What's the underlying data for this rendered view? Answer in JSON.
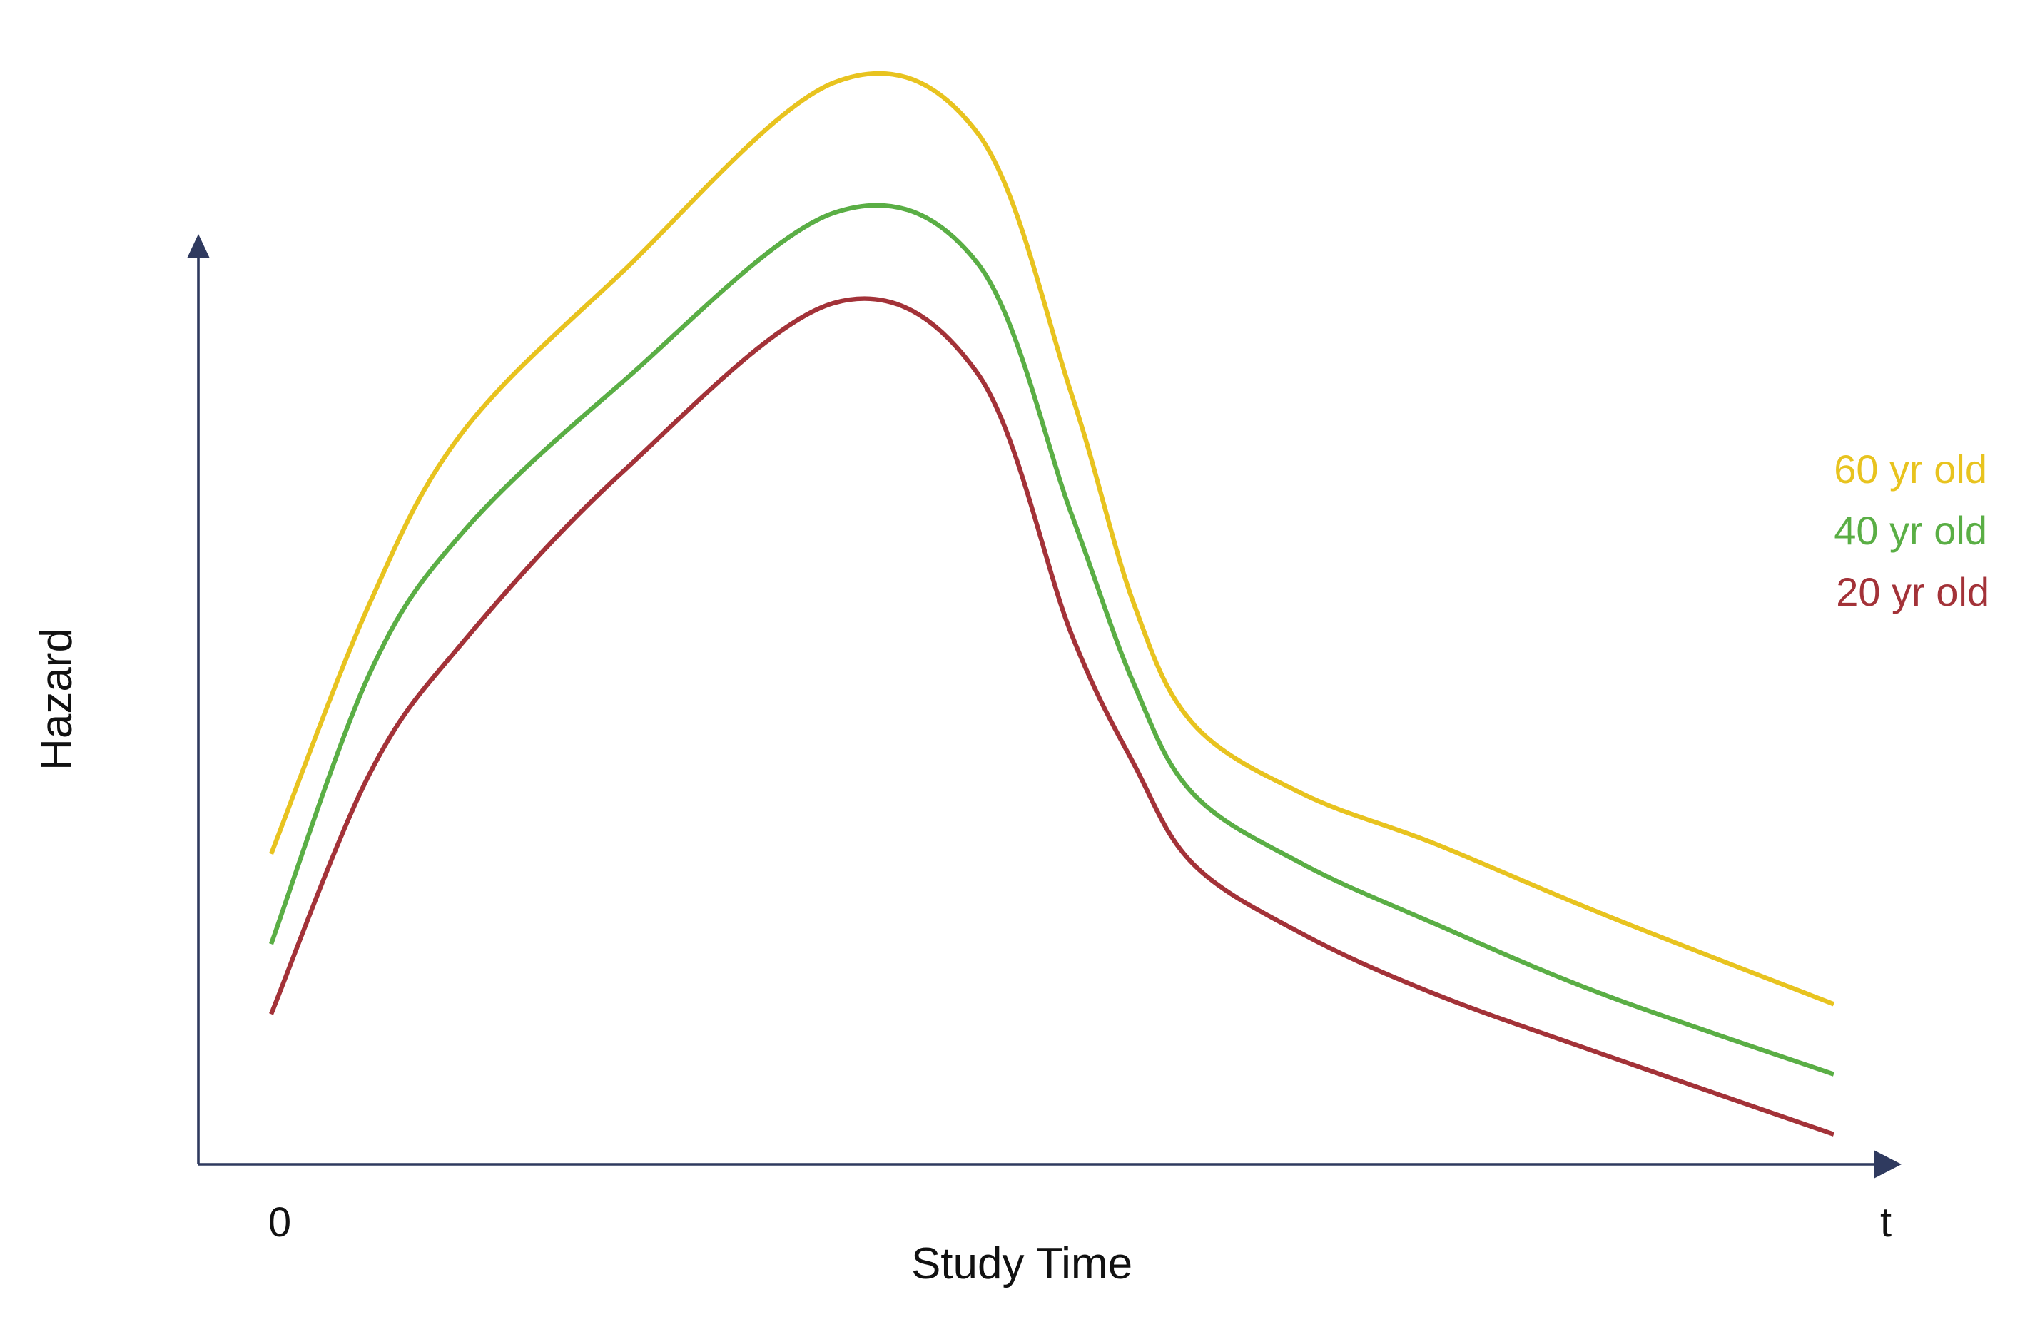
{
  "chart_data": {
    "type": "line",
    "title": "",
    "xlabel": "Study Time",
    "ylabel": "Hazard",
    "x_ticks": [
      "0",
      "t"
    ],
    "grid": false,
    "legend_position": "right",
    "x_domain": [
      0,
      1
    ],
    "y_domain": [
      0,
      1
    ],
    "series": [
      {
        "name": "60 yr old",
        "color": "#E8C31F",
        "x": [
          0.0,
          0.063,
          0.122,
          0.224,
          0.36,
          0.452,
          0.48,
          0.512,
          0.552,
          0.59,
          0.66,
          0.745,
          0.852,
          1.0
        ],
        "y": [
          0.31,
          0.56,
          0.73,
          0.89,
          1.08,
          1.03,
          0.96,
          0.77,
          0.56,
          0.44,
          0.37,
          0.32,
          0.25,
          0.16
        ],
        "curve": [
          {
            "x": 0.0,
            "y": 0.31
          },
          {
            "x": 0.063,
            "y": 0.56
          },
          {
            "x": 0.122,
            "y": 0.73
          },
          {
            "x": 0.224,
            "y": 0.89
          },
          {
            "x": 0.36,
            "y": 1.08
          },
          {
            "x": 0.452,
            "y": 1.03
          },
          {
            "x": 0.512,
            "y": 0.77
          },
          {
            "x": 0.552,
            "y": 0.56
          },
          {
            "x": 0.59,
            "y": 0.44
          },
          {
            "x": 0.66,
            "y": 0.37
          },
          {
            "x": 0.745,
            "y": 0.32
          },
          {
            "x": 0.852,
            "y": 0.25
          },
          {
            "x": 1.0,
            "y": 0.16
          }
        ]
      },
      {
        "name": "40 yr old",
        "color": "#5AAE45",
        "x": [
          0.0,
          0.063,
          0.122,
          0.224,
          0.36,
          0.452,
          0.48,
          0.512,
          0.552,
          0.59,
          0.66,
          0.745,
          0.852,
          1.0
        ],
        "y": [
          0.22,
          0.49,
          0.63,
          0.78,
          0.95,
          0.9,
          0.81,
          0.65,
          0.48,
          0.37,
          0.3,
          0.24,
          0.17,
          0.09
        ],
        "curve": [
          {
            "x": 0.0,
            "y": 0.22
          },
          {
            "x": 0.063,
            "y": 0.49
          },
          {
            "x": 0.122,
            "y": 0.63
          },
          {
            "x": 0.224,
            "y": 0.78
          },
          {
            "x": 0.36,
            "y": 0.95
          },
          {
            "x": 0.452,
            "y": 0.9
          },
          {
            "x": 0.512,
            "y": 0.65
          },
          {
            "x": 0.552,
            "y": 0.48
          },
          {
            "x": 0.59,
            "y": 0.37
          },
          {
            "x": 0.66,
            "y": 0.3
          },
          {
            "x": 0.745,
            "y": 0.24
          },
          {
            "x": 0.852,
            "y": 0.17
          },
          {
            "x": 1.0,
            "y": 0.09
          }
        ]
      },
      {
        "name": "20 yr old",
        "color": "#A33238",
        "x": [
          0.0,
          0.063,
          0.122,
          0.224,
          0.36,
          0.452,
          0.48,
          0.512,
          0.552,
          0.59,
          0.66,
          0.745,
          0.852,
          1.0
        ],
        "y": [
          0.15,
          0.39,
          0.52,
          0.69,
          0.86,
          0.79,
          0.7,
          0.53,
          0.4,
          0.3,
          0.23,
          0.17,
          0.11,
          0.03
        ],
        "curve": [
          {
            "x": 0.0,
            "y": 0.15
          },
          {
            "x": 0.063,
            "y": 0.39
          },
          {
            "x": 0.122,
            "y": 0.52
          },
          {
            "x": 0.224,
            "y": 0.69
          },
          {
            "x": 0.36,
            "y": 0.86
          },
          {
            "x": 0.452,
            "y": 0.79
          },
          {
            "x": 0.512,
            "y": 0.53
          },
          {
            "x": 0.552,
            "y": 0.4
          },
          {
            "x": 0.59,
            "y": 0.3
          },
          {
            "x": 0.66,
            "y": 0.23
          },
          {
            "x": 0.745,
            "y": 0.17
          },
          {
            "x": 0.852,
            "y": 0.11
          },
          {
            "x": 1.0,
            "y": 0.03
          }
        ]
      }
    ]
  },
  "colors": {
    "axis": "#2f3a5f",
    "text": "#111111"
  }
}
